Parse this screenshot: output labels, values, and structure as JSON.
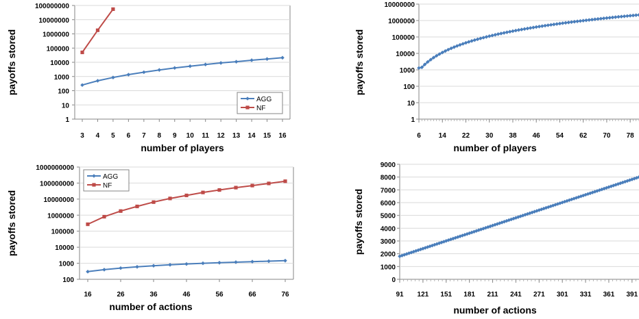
{
  "chart_data": [
    {
      "type": "line",
      "scale": "log",
      "xlabel": "number of players",
      "ylabel": "payoffs stored",
      "x": [
        3,
        4,
        5,
        6,
        7,
        8,
        9,
        10,
        11,
        12,
        13,
        14,
        15,
        16
      ],
      "x_tick_labels": [
        "3",
        "4",
        "5",
        "6",
        "7",
        "8",
        "9",
        "10",
        "11",
        "12",
        "13",
        "14",
        "15",
        "16"
      ],
      "y_tick_labels": [
        "1",
        "10",
        "100",
        "1000",
        "10000",
        "100000",
        "1000000",
        "10000000",
        "100000000"
      ],
      "ylim": [
        1,
        100000000
      ],
      "legend_position": "bottom-right",
      "series": [
        {
          "name": "AGG",
          "color": "#4a7ebb",
          "marker": "diamond",
          "x": [
            3,
            4,
            5,
            6,
            7,
            8,
            9,
            10,
            11,
            12,
            13,
            14,
            15,
            16
          ],
          "values": [
            250,
            500,
            850,
            1350,
            2000,
            2900,
            4000,
            5300,
            7000,
            9000,
            11000,
            14000,
            17000,
            21000
          ]
        },
        {
          "name": "NF",
          "color": "#be4b48",
          "marker": "square",
          "x": [
            3,
            4,
            5
          ],
          "values": [
            50000,
            1800000,
            55000000
          ]
        }
      ]
    },
    {
      "type": "line",
      "scale": "log",
      "xlabel": "number of players",
      "ylabel": "payoffs stored",
      "x_range": [
        6,
        81
      ],
      "x_tick_labels": [
        "6",
        "14",
        "22",
        "30",
        "38",
        "46",
        "54",
        "62",
        "70",
        "78"
      ],
      "y_tick_labels": [
        "1",
        "10",
        "100",
        "1000",
        "10000",
        "100000",
        "1000000",
        "10000000"
      ],
      "ylim": [
        1,
        10000000
      ],
      "series": [
        {
          "name": "AGG",
          "color": "#4a7ebb",
          "marker": "diamond",
          "x_start": 6,
          "x_end": 81,
          "y_start": 1300,
          "y_end": 2200000,
          "growth_exponent": 3
        }
      ]
    },
    {
      "type": "line",
      "scale": "log",
      "xlabel": "number of actions",
      "ylabel": "payoffs stored",
      "x": [
        16,
        21,
        26,
        31,
        36,
        41,
        46,
        51,
        56,
        61,
        66,
        71,
        76
      ],
      "x_tick_labels": [
        "16",
        "26",
        "36",
        "46",
        "56",
        "66",
        "76"
      ],
      "y_tick_labels": [
        "100",
        "1000",
        "10000",
        "100000",
        "1000000",
        "10000000",
        "100000000",
        "1000000000"
      ],
      "ylim": [
        100,
        1000000000
      ],
      "legend_position": "top-left",
      "series": [
        {
          "name": "AGG",
          "color": "#4a7ebb",
          "marker": "diamond",
          "x": [
            16,
            21,
            26,
            31,
            36,
            41,
            46,
            51,
            56,
            61,
            66,
            71,
            76
          ],
          "values": [
            300,
            400,
            500,
            600,
            700,
            800,
            900,
            1000,
            1080,
            1170,
            1260,
            1350,
            1450
          ]
        },
        {
          "name": "NF",
          "color": "#be4b48",
          "marker": "square",
          "x": [
            16,
            21,
            26,
            31,
            36,
            41,
            46,
            51,
            56,
            61,
            66,
            71,
            76
          ],
          "values": [
            270000,
            800000,
            1800000,
            3500000,
            6500000,
            11000000,
            17000000,
            26000000,
            37000000,
            52000000,
            70000000,
            95000000,
            130000000
          ]
        }
      ]
    },
    {
      "type": "line",
      "scale": "linear",
      "xlabel": "number of actions",
      "ylabel": "payoffs stored",
      "x_range": [
        91,
        400
      ],
      "x_tick_labels": [
        "91",
        "121",
        "151",
        "181",
        "211",
        "241",
        "271",
        "301",
        "331",
        "361",
        "391"
      ],
      "y_tick_labels": [
        "0",
        "1000",
        "2000",
        "3000",
        "4000",
        "5000",
        "6000",
        "7000",
        "8000",
        "9000"
      ],
      "ylim": [
        0,
        9000
      ],
      "series": [
        {
          "name": "AGG",
          "color": "#4a7ebb",
          "marker": "diamond",
          "x_start": 91,
          "x_end": 400,
          "y_start": 1800,
          "y_end": 8000,
          "growth_exponent": 1
        }
      ]
    }
  ]
}
